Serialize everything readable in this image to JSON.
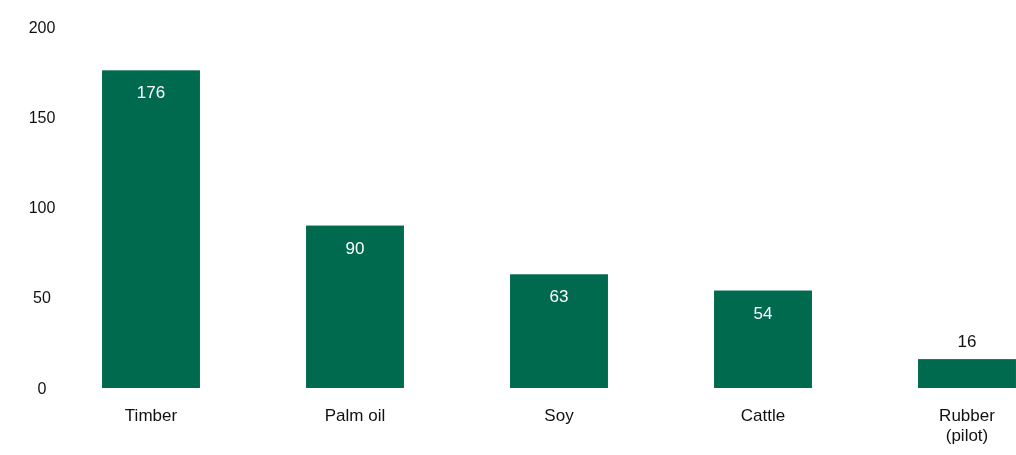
{
  "chart_data": {
    "type": "bar",
    "categories": [
      "Timber",
      "Palm oil",
      "Soy",
      "Cattle",
      "Rubber (pilot)"
    ],
    "values": [
      176,
      90,
      63,
      54,
      16
    ],
    "color": "#006a4e",
    "ylim": [
      0,
      200
    ],
    "yticks": [
      0,
      50,
      100,
      150,
      200
    ],
    "grid": false,
    "data_labels": true
  }
}
